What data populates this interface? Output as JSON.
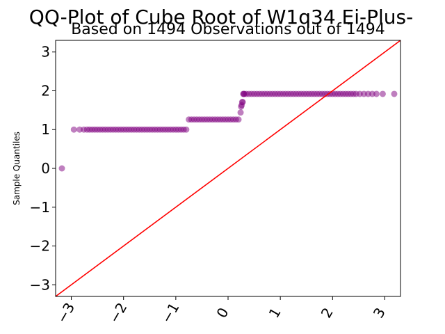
{
  "chart_data": {
    "type": "scatter",
    "title": "QQ-Plot of Cube Root of W1q34 Ei-Plus-",
    "subtitle": "Based on 1494 Observations out of 1494",
    "xlabel": "",
    "ylabel": "Sample Quantiles",
    "xlim": [
      -3.3,
      3.3
    ],
    "ylim": [
      -3.3,
      3.3
    ],
    "xticks": [
      -3,
      -2,
      -1,
      0,
      1,
      2,
      3
    ],
    "yticks": [
      -3,
      -2,
      -1,
      0,
      1,
      2,
      3
    ],
    "xtick_labels": [
      "−3",
      "−2",
      "−1",
      "0",
      "1",
      "2",
      "3"
    ],
    "ytick_labels": [
      "−3",
      "−2",
      "−1",
      "0",
      "1",
      "2",
      "3"
    ],
    "grid": false,
    "series": [
      {
        "name": "observations",
        "color": "#800080",
        "opacity": 0.5,
        "x": [
          -3.18,
          -2.95,
          -2.84,
          -2.76,
          -2.7,
          -2.65,
          -2.6,
          -2.55,
          -2.5,
          -2.45,
          -2.4,
          -2.35,
          -2.3,
          -2.25,
          -2.2,
          -2.15,
          -2.1,
          -2.05,
          -2.0,
          -1.95,
          -1.9,
          -1.85,
          -1.8,
          -1.75,
          -1.7,
          -1.65,
          -1.6,
          -1.55,
          -1.5,
          -1.45,
          -1.4,
          -1.35,
          -1.3,
          -1.25,
          -1.2,
          -1.15,
          -1.1,
          -1.05,
          -1.0,
          -0.95,
          -0.9,
          -0.85,
          -0.8,
          -0.75,
          -0.7,
          -0.65,
          -0.6,
          -0.55,
          -0.5,
          -0.45,
          -0.4,
          -0.35,
          -0.3,
          -0.25,
          -0.2,
          -0.15,
          -0.1,
          -0.05,
          0.0,
          0.05,
          0.1,
          0.15,
          0.2,
          0.24,
          0.25,
          0.26,
          0.27,
          0.28,
          0.29,
          0.3,
          0.31,
          0.35,
          0.4,
          0.45,
          0.5,
          0.55,
          0.6,
          0.65,
          0.7,
          0.75,
          0.8,
          0.85,
          0.9,
          0.95,
          1.0,
          1.05,
          1.1,
          1.15,
          1.2,
          1.25,
          1.3,
          1.35,
          1.4,
          1.45,
          1.5,
          1.55,
          1.6,
          1.65,
          1.7,
          1.75,
          1.8,
          1.85,
          1.9,
          1.95,
          2.0,
          2.05,
          2.1,
          2.15,
          2.2,
          2.25,
          2.3,
          2.35,
          2.4,
          2.45,
          2.52,
          2.6,
          2.68,
          2.76,
          2.84,
          2.96,
          3.18
        ],
        "y": [
          0.0,
          1.0,
          1.0,
          1.0,
          1.0,
          1.0,
          1.0,
          1.0,
          1.0,
          1.0,
          1.0,
          1.0,
          1.0,
          1.0,
          1.0,
          1.0,
          1.0,
          1.0,
          1.0,
          1.0,
          1.0,
          1.0,
          1.0,
          1.0,
          1.0,
          1.0,
          1.0,
          1.0,
          1.0,
          1.0,
          1.0,
          1.0,
          1.0,
          1.0,
          1.0,
          1.0,
          1.0,
          1.0,
          1.0,
          1.0,
          1.0,
          1.0,
          1.0,
          1.26,
          1.26,
          1.26,
          1.26,
          1.26,
          1.26,
          1.26,
          1.26,
          1.26,
          1.26,
          1.26,
          1.26,
          1.26,
          1.26,
          1.26,
          1.26,
          1.26,
          1.26,
          1.26,
          1.26,
          1.44,
          1.59,
          1.63,
          1.71,
          1.71,
          1.92,
          1.92,
          1.92,
          1.92,
          1.92,
          1.92,
          1.92,
          1.92,
          1.92,
          1.92,
          1.92,
          1.92,
          1.92,
          1.92,
          1.92,
          1.92,
          1.92,
          1.92,
          1.92,
          1.92,
          1.92,
          1.92,
          1.92,
          1.92,
          1.92,
          1.92,
          1.92,
          1.92,
          1.92,
          1.92,
          1.92,
          1.92,
          1.92,
          1.92,
          1.92,
          1.92,
          1.92,
          1.92,
          1.92,
          1.92,
          1.92,
          1.92,
          1.92,
          1.92,
          1.92,
          1.92,
          1.92,
          1.92,
          1.92,
          1.92,
          1.92,
          1.92,
          1.92
        ]
      }
    ],
    "reference_line": {
      "name": "reference-line",
      "color": "#ff0000",
      "x": [
        -3.3,
        3.3
      ],
      "y": [
        -3.3,
        3.3
      ]
    }
  }
}
